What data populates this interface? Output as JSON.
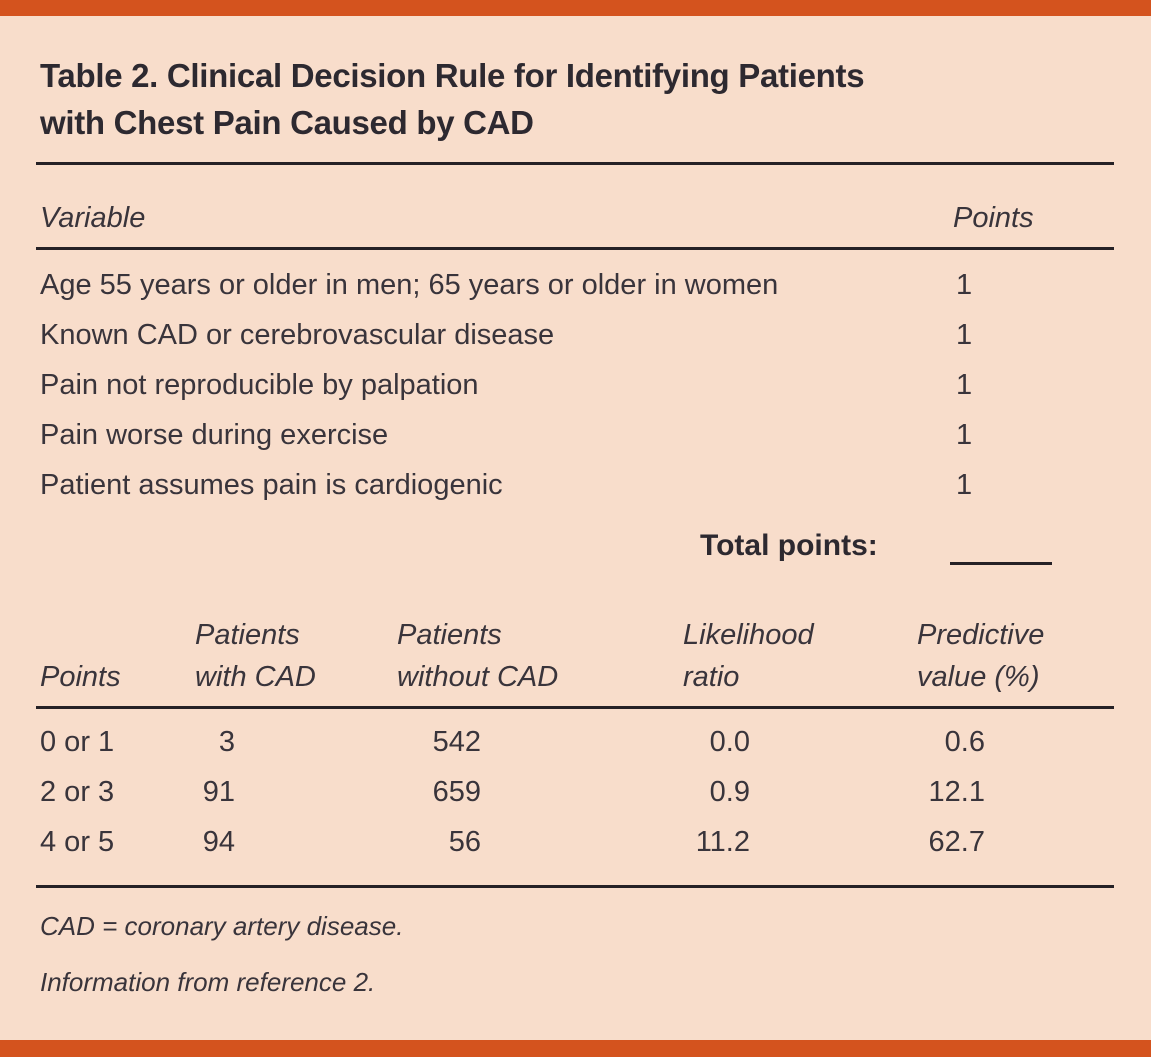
{
  "colors": {
    "accent_bar": "#d4531e",
    "background": "#f8ddcb",
    "text": "#39343b",
    "rule": "#262126"
  },
  "title": {
    "line1": "Table 2. Clinical Decision Rule for Identifying Patients",
    "line2": "with Chest Pain Caused by CAD"
  },
  "scoring_table": {
    "variable_header": "Variable",
    "points_header": "Points",
    "rows": [
      {
        "variable": "Age 55 years or older in men; 65 years or older in women",
        "points": "1"
      },
      {
        "variable": "Known CAD or cerebrovascular disease",
        "points": "1"
      },
      {
        "variable": "Pain not reproducible by palpation",
        "points": "1"
      },
      {
        "variable": "Pain worse during exercise",
        "points": "1"
      },
      {
        "variable": "Patient assumes pain is cardiogenic",
        "points": "1"
      }
    ],
    "total_points_label": "Total points:",
    "total_points_value": ""
  },
  "results_table": {
    "headers": [
      {
        "line1": "",
        "line2": "Points"
      },
      {
        "line1": "Patients",
        "line2": "with CAD"
      },
      {
        "line1": "Patients",
        "line2": "without CAD"
      },
      {
        "line1": "Likelihood",
        "line2": "ratio"
      },
      {
        "line1": "Predictive",
        "line2": "value (%)"
      }
    ],
    "rows": [
      {
        "points": "0 or 1",
        "with_cad": "3",
        "without_cad": "542",
        "likelihood_ratio": "0.0",
        "predictive_value": "0.6"
      },
      {
        "points": "2 or 3",
        "with_cad": "91",
        "without_cad": "659",
        "likelihood_ratio": "0.9",
        "predictive_value": "12.1"
      },
      {
        "points": "4 or 5",
        "with_cad": "94",
        "without_cad": "56",
        "likelihood_ratio": "11.2",
        "predictive_value": "62.7"
      }
    ]
  },
  "footnotes": {
    "abbreviation": "CAD = coronary artery disease.",
    "source": "Information from reference 2."
  }
}
